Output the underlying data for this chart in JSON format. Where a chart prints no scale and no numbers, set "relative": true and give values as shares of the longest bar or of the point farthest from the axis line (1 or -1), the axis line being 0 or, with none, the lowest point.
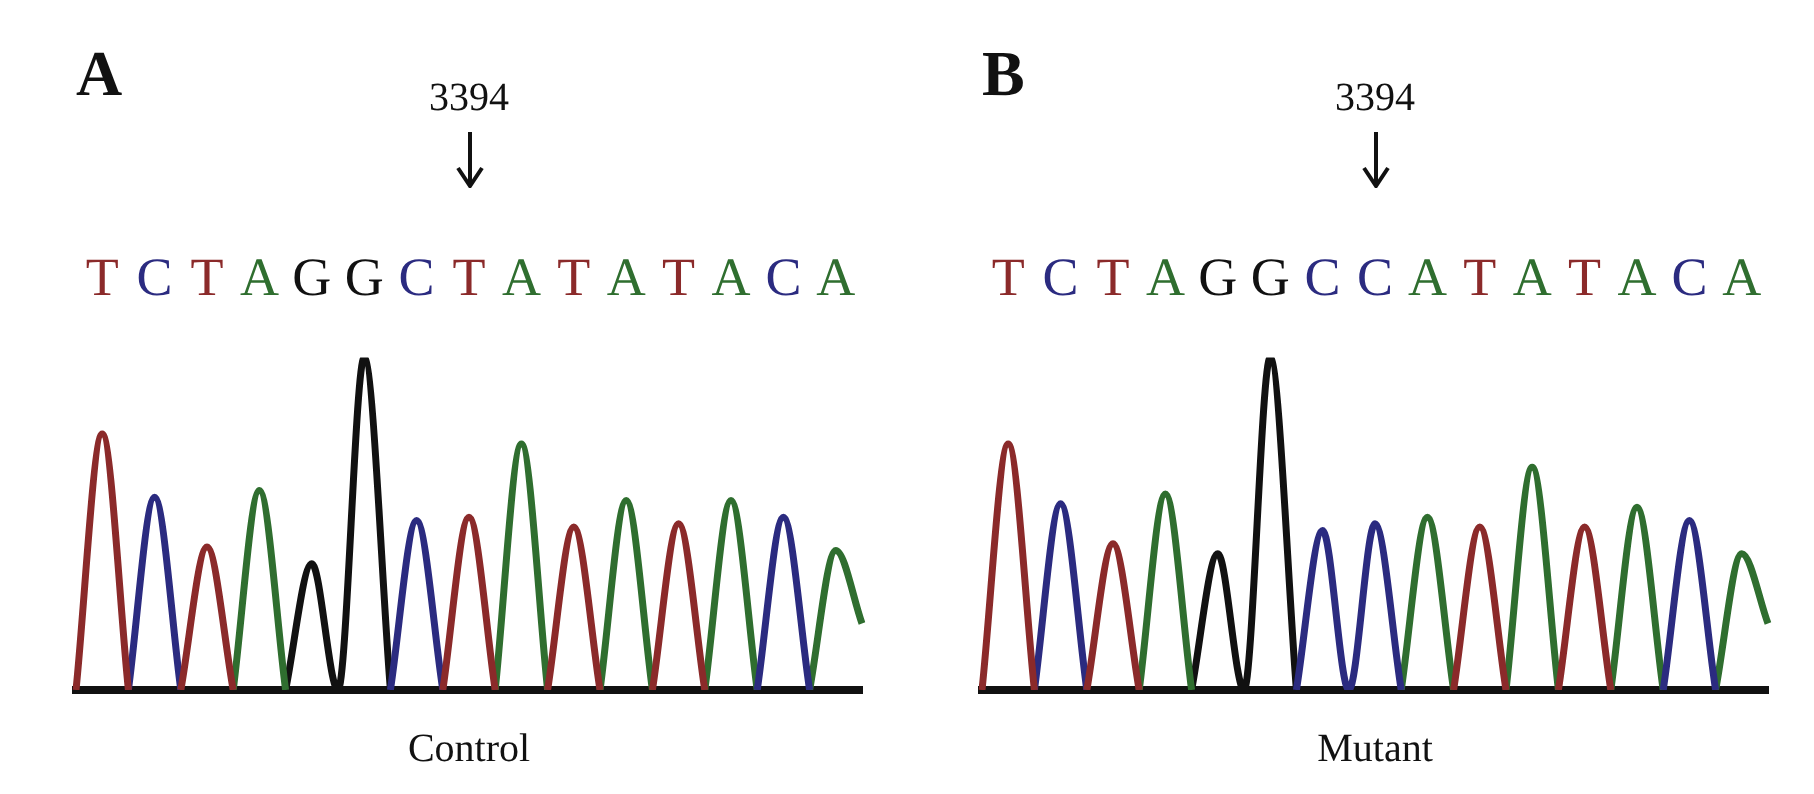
{
  "chart_data": [
    {
      "type": "line",
      "title": "A",
      "xlabel": "Control",
      "relative": true,
      "annotations": [
        "3394"
      ],
      "legend": false,
      "categories": [
        null,
        "T",
        null,
        "C",
        null,
        "T",
        null,
        "A",
        null,
        "G",
        null,
        "G",
        null,
        "C",
        null,
        "T",
        null,
        "A",
        null,
        "T",
        null,
        "A",
        null,
        "T",
        null,
        "A",
        null,
        "C",
        null,
        "A",
        null
      ],
      "series": [
        {
          "color": "#8b2a2a",
          "values": [
            0,
            0.77,
            0,
            null,
            0,
            0.43,
            0,
            null,
            null,
            null,
            null,
            null,
            null,
            null,
            0,
            0.52,
            0,
            null,
            0,
            0.49,
            0,
            null,
            0,
            0.5,
            0,
            null,
            null,
            null,
            null,
            null,
            null
          ]
        },
        {
          "color": "#2b2b80",
          "values": [
            null,
            null,
            0,
            0.58,
            0,
            null,
            null,
            null,
            null,
            null,
            null,
            null,
            0,
            0.51,
            0,
            null,
            null,
            null,
            null,
            null,
            null,
            null,
            null,
            null,
            null,
            null,
            0,
            0.52,
            0,
            null,
            null
          ]
        },
        {
          "color": "#2f6e2f",
          "values": [
            null,
            null,
            null,
            null,
            null,
            null,
            0,
            0.6,
            0,
            null,
            null,
            null,
            null,
            null,
            null,
            null,
            0,
            0.74,
            0,
            null,
            0,
            0.57,
            0,
            null,
            0,
            0.57,
            0,
            null,
            0,
            0.42,
            0.2
          ]
        },
        {
          "color": "#111111",
          "values": [
            null,
            null,
            null,
            null,
            null,
            null,
            null,
            null,
            0,
            0.38,
            0,
            1,
            0,
            null,
            null,
            null,
            null,
            null,
            null,
            null,
            null,
            null,
            null,
            null,
            null,
            null,
            null,
            null,
            null,
            null,
            null
          ]
        }
      ]
    },
    {
      "type": "line",
      "title": "B",
      "xlabel": "Mutant",
      "relative": true,
      "annotations": [
        "3394"
      ],
      "legend": false,
      "categories": [
        null,
        "T",
        null,
        "C",
        null,
        "T",
        null,
        "A",
        null,
        "G",
        null,
        "G",
        null,
        "C",
        null,
        "C",
        null,
        "A",
        null,
        "T",
        null,
        "A",
        null,
        "T",
        null,
        "A",
        null,
        "C",
        null,
        "A",
        null
      ],
      "series": [
        {
          "color": "#8b2a2a",
          "values": [
            0,
            0.74,
            0,
            null,
            0,
            0.44,
            0,
            null,
            null,
            null,
            null,
            null,
            null,
            null,
            null,
            null,
            null,
            null,
            0,
            0.49,
            0,
            null,
            0,
            0.49,
            0,
            null,
            null,
            null,
            null,
            null,
            null
          ]
        },
        {
          "color": "#2b2b80",
          "values": [
            null,
            null,
            0,
            0.56,
            0,
            null,
            null,
            null,
            null,
            null,
            null,
            null,
            0,
            0.48,
            0,
            0.5,
            0,
            null,
            null,
            null,
            null,
            null,
            null,
            null,
            null,
            null,
            0,
            0.51,
            0,
            null,
            null
          ]
        },
        {
          "color": "#2f6e2f",
          "values": [
            null,
            null,
            null,
            null,
            null,
            null,
            0,
            0.59,
            0,
            null,
            null,
            null,
            null,
            null,
            null,
            null,
            0,
            0.52,
            0,
            null,
            0,
            0.67,
            0,
            null,
            0,
            0.55,
            0,
            null,
            0,
            0.41,
            0.2
          ]
        },
        {
          "color": "#111111",
          "values": [
            null,
            null,
            null,
            null,
            null,
            null,
            null,
            null,
            0,
            0.41,
            0,
            1,
            0,
            null,
            null,
            null,
            null,
            null,
            null,
            null,
            null,
            null,
            null,
            null,
            null,
            null,
            null,
            null,
            null,
            null,
            null
          ]
        }
      ]
    }
  ]
}
